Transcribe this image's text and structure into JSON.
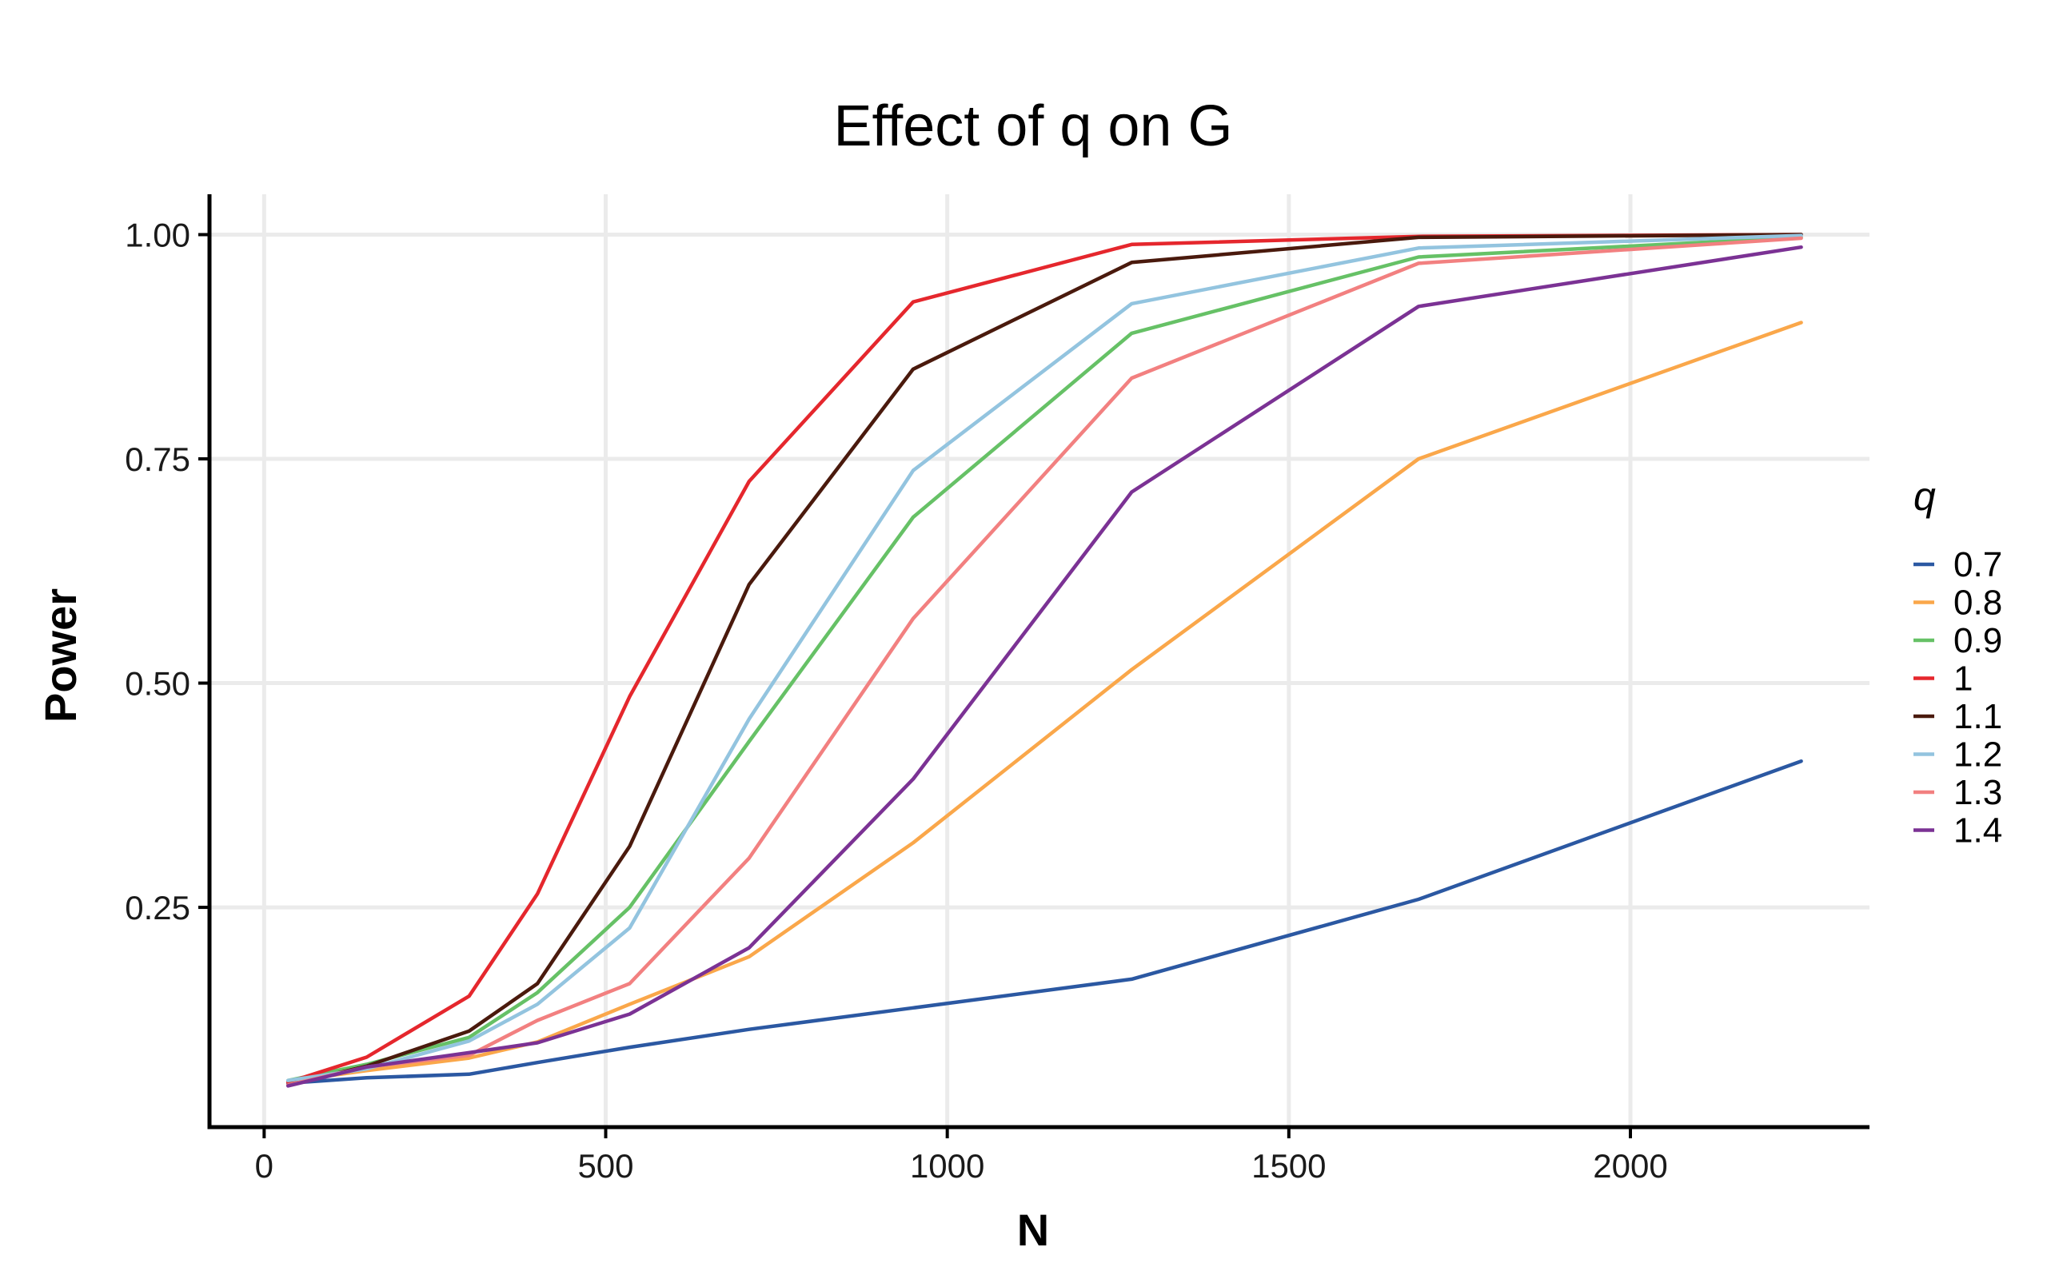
{
  "chart_data": {
    "type": "line",
    "title": "Effect of q on G",
    "xlabel": "N",
    "ylabel": "Power",
    "xlim": [
      -80,
      2350
    ],
    "ylim": [
      0.005,
      1.045
    ],
    "x_ticks": [
      0,
      500,
      1000,
      1500,
      2000
    ],
    "x_tick_labels": [
      "0",
      "500",
      "1000",
      "1500",
      "2000"
    ],
    "y_ticks": [
      0.25,
      0.5,
      0.75,
      1.0
    ],
    "y_tick_labels": [
      "0.25",
      "0.50",
      "0.75",
      "1.00"
    ],
    "grid": true,
    "legend": {
      "title": "q",
      "position": "right"
    },
    "x": [
      35,
      150,
      300,
      400,
      535,
      710,
      950,
      1270,
      1690,
      2250
    ],
    "series": [
      {
        "name": "0.7",
        "color": "#2b58a2",
        "values": [
          0.054,
          0.06,
          0.064,
          0.077,
          0.094,
          0.114,
          0.138,
          0.17,
          0.259,
          0.413
        ]
      },
      {
        "name": "0.8",
        "color": "#faa74a",
        "values": [
          0.056,
          0.068,
          0.082,
          0.1,
          0.142,
          0.195,
          0.322,
          0.515,
          0.75,
          0.902
        ]
      },
      {
        "name": "0.9",
        "color": "#66c166",
        "values": [
          0.057,
          0.075,
          0.105,
          0.155,
          0.25,
          0.435,
          0.685,
          0.89,
          0.975,
          0.997
        ]
      },
      {
        "name": "1",
        "color": "#e5272d",
        "values": [
          0.055,
          0.083,
          0.151,
          0.265,
          0.485,
          0.725,
          0.925,
          0.989,
          0.998,
          1.0
        ]
      },
      {
        "name": "1.1",
        "color": "#4a1a0d",
        "values": [
          0.052,
          0.073,
          0.112,
          0.165,
          0.318,
          0.61,
          0.85,
          0.969,
          0.997,
          1.0
        ]
      },
      {
        "name": "1.2",
        "color": "#93c4df",
        "values": [
          0.057,
          0.07,
          0.101,
          0.142,
          0.227,
          0.46,
          0.737,
          0.923,
          0.985,
          0.999
        ]
      },
      {
        "name": "1.3",
        "color": "#f28080",
        "values": [
          0.052,
          0.072,
          0.085,
          0.124,
          0.165,
          0.305,
          0.572,
          0.84,
          0.968,
          0.996
        ]
      },
      {
        "name": "1.4",
        "color": "#7b3294",
        "values": [
          0.051,
          0.072,
          0.088,
          0.099,
          0.131,
          0.205,
          0.393,
          0.713,
          0.92,
          0.986
        ]
      }
    ]
  }
}
